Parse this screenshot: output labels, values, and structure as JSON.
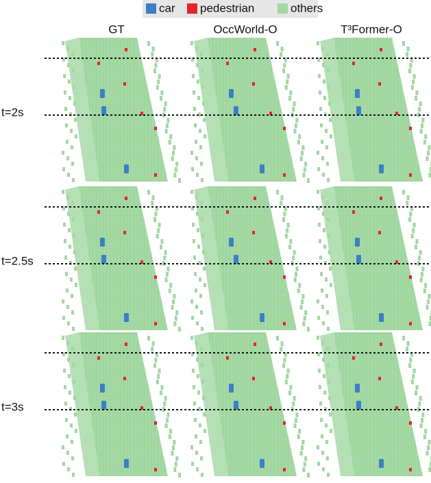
{
  "legend": {
    "items": [
      {
        "label": "car",
        "color": "#3a80c6"
      },
      {
        "label": "pedestrian",
        "color": "#e3262a"
      },
      {
        "label": "others",
        "color": "#a3d8a3"
      }
    ]
  },
  "columns": [
    "GT",
    "OccWorld-O",
    "T³Former-O"
  ],
  "rows": [
    "t=2s",
    "t=2.5s",
    "t=3s"
  ]
}
